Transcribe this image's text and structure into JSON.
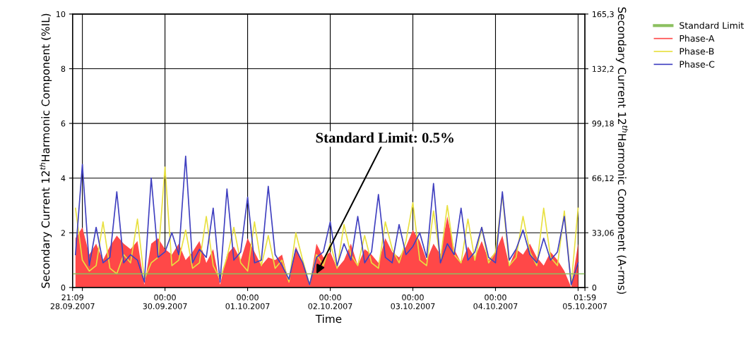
{
  "chart_data": {
    "type": "line",
    "xlabel": "Time",
    "ylabel": "Secondary Current 12$^{th}$Harmonic Component (%IL)",
    "y2label": "Secondary Current 12$^{th}$Harmonic Component (A-rms)",
    "x": [
      "2007-09-28T22:00",
      "2007-09-29T00:00",
      "2007-09-29T02:00",
      "2007-09-29T04:00",
      "2007-09-29T06:00",
      "2007-09-29T08:00",
      "2007-09-29T10:00",
      "2007-09-29T12:00",
      "2007-09-29T14:00",
      "2007-09-29T16:00",
      "2007-09-29T18:00",
      "2007-09-29T20:00",
      "2007-09-29T22:00",
      "2007-09-30T00:00",
      "2007-09-30T02:00",
      "2007-09-30T04:00",
      "2007-09-30T06:00",
      "2007-09-30T08:00",
      "2007-09-30T10:00",
      "2007-09-30T12:00",
      "2007-09-30T14:00",
      "2007-09-30T16:00",
      "2007-09-30T18:00",
      "2007-09-30T20:00",
      "2007-09-30T22:00",
      "2007-10-01T00:00",
      "2007-10-01T02:00",
      "2007-10-01T04:00",
      "2007-10-01T06:00",
      "2007-10-01T08:00",
      "2007-10-01T10:00",
      "2007-10-01T12:00",
      "2007-10-01T14:00",
      "2007-10-01T16:00",
      "2007-10-01T18:00",
      "2007-10-01T20:00",
      "2007-10-01T22:00",
      "2007-10-02T00:00",
      "2007-10-02T02:00",
      "2007-10-02T04:00",
      "2007-10-02T06:00",
      "2007-10-02T08:00",
      "2007-10-02T10:00",
      "2007-10-02T12:00",
      "2007-10-02T14:00",
      "2007-10-02T16:00",
      "2007-10-02T18:00",
      "2007-10-02T20:00",
      "2007-10-02T22:00",
      "2007-10-03T00:00",
      "2007-10-03T02:00",
      "2007-10-03T04:00",
      "2007-10-03T06:00",
      "2007-10-03T08:00",
      "2007-10-03T10:00",
      "2007-10-03T12:00",
      "2007-10-03T14:00",
      "2007-10-03T16:00",
      "2007-10-03T18:00",
      "2007-10-03T20:00",
      "2007-10-03T22:00",
      "2007-10-04T00:00",
      "2007-10-04T02:00",
      "2007-10-04T04:00",
      "2007-10-04T06:00",
      "2007-10-04T08:00",
      "2007-10-04T10:00",
      "2007-10-04T12:00",
      "2007-10-04T14:00",
      "2007-10-04T16:00",
      "2007-10-04T18:00",
      "2007-10-04T20:00",
      "2007-10-04T22:00",
      "2007-10-05T00:00"
    ],
    "series": [
      {
        "name": "Standard Limit",
        "color": "#8cc060",
        "x": [
          "2007-09-28T21:09",
          "2007-10-05T01:59"
        ],
        "values": [
          0.5,
          0.5
        ]
      },
      {
        "name": "Phase-A",
        "type": "area",
        "color": "#ff4848",
        "values": [
          1.8,
          2.2,
          1.2,
          1.6,
          1.0,
          1.5,
          1.9,
          1.6,
          1.4,
          1.7,
          0.1,
          1.6,
          1.8,
          1.4,
          1.2,
          1.6,
          1.0,
          1.3,
          1.7,
          0.9,
          1.4,
          0.1,
          1.2,
          1.5,
          1.0,
          1.8,
          1.3,
          0.8,
          1.1,
          1.0,
          1.2,
          0.2,
          1.5,
          0.9,
          0.1,
          1.6,
          1.1,
          1.3,
          0.7,
          1.0,
          1.6,
          0.8,
          1.4,
          1.2,
          0.9,
          1.8,
          1.3,
          1.1,
          1.5,
          2.1,
          1.7,
          1.0,
          1.6,
          1.2,
          2.6,
          1.4,
          0.9,
          1.5,
          1.1,
          1.7,
          1.0,
          1.3,
          1.9,
          0.8,
          1.4,
          1.2,
          1.6,
          1.1,
          0.8,
          1.3,
          1.0,
          0.6,
          0.0,
          1.6
        ]
      },
      {
        "name": "Phase-B",
        "color": "#e8e040",
        "values": [
          2.9,
          1.0,
          0.6,
          0.8,
          2.4,
          0.7,
          0.5,
          1.2,
          0.9,
          2.5,
          0.3,
          0.9,
          1.1,
          4.4,
          0.8,
          1.0,
          2.1,
          0.7,
          0.9,
          2.6,
          0.8,
          0.3,
          1.1,
          2.2,
          0.9,
          0.6,
          2.4,
          0.8,
          1.9,
          0.7,
          1.0,
          0.2,
          2.0,
          1.0,
          0.1,
          1.2,
          0.8,
          1.6,
          0.7,
          2.3,
          1.2,
          0.8,
          1.9,
          0.9,
          0.7,
          2.4,
          1.4,
          0.9,
          1.7,
          3.1,
          1.0,
          0.8,
          2.8,
          1.0,
          3.0,
          1.2,
          0.9,
          2.5,
          1.0,
          2.2,
          0.9,
          1.3,
          3.4,
          0.8,
          1.1,
          2.6,
          1.3,
          0.8,
          2.9,
          1.1,
          0.8,
          2.8,
          0.1,
          2.9
        ]
      },
      {
        "name": "Phase-C",
        "color": "#4040c0",
        "values": [
          1.2,
          4.5,
          0.8,
          2.2,
          0.9,
          1.1,
          3.5,
          0.9,
          1.2,
          1.0,
          0.2,
          4.0,
          1.1,
          1.3,
          2.0,
          1.2,
          4.8,
          0.9,
          1.4,
          1.1,
          2.9,
          0.2,
          3.6,
          1.0,
          1.3,
          3.3,
          0.9,
          1.0,
          3.7,
          1.2,
          0.8,
          0.3,
          1.4,
          0.9,
          0.1,
          1.1,
          1.3,
          2.4,
          0.8,
          1.6,
          1.0,
          2.6,
          0.9,
          1.3,
          3.4,
          1.1,
          0.9,
          2.3,
          1.2,
          1.5,
          2.0,
          1.1,
          3.8,
          0.9,
          1.6,
          1.2,
          2.9,
          1.0,
          1.3,
          2.2,
          1.1,
          0.9,
          3.5,
          1.0,
          1.4,
          2.1,
          1.2,
          0.9,
          1.8,
          1.0,
          1.3,
          2.6,
          0.1,
          0.9
        ]
      }
    ],
    "xlim": [
      "2007-09-28T21:09",
      "2007-10-05T01:59"
    ],
    "xticks": [
      {
        "value": "2007-09-28T21:09",
        "label": "21:09\n28.09.2007"
      },
      {
        "value": "2007-09-29T00:00",
        "label": null
      },
      {
        "value": "2007-09-30T00:00",
        "label": "00:00\n30.09.2007"
      },
      {
        "value": "2007-10-01T00:00",
        "label": "00:00\n01.10.2007"
      },
      {
        "value": "2007-10-02T00:00",
        "label": "00:00\n02.10.2007"
      },
      {
        "value": "2007-10-03T00:00",
        "label": "00:00\n03.10.2007"
      },
      {
        "value": "2007-10-04T00:00",
        "label": "00:00\n04.10.2007"
      },
      {
        "value": "2007-10-05T00:00",
        "label": null
      },
      {
        "value": "2007-10-05T01:59",
        "label": "01:59\n05.10.2007"
      }
    ],
    "ylim": [
      0,
      10
    ],
    "yticks": [
      0,
      2,
      4,
      6,
      8,
      10
    ],
    "y2lim": [
      0,
      165.3
    ],
    "y2ticks": [
      0,
      {
        "value": 33.06,
        "label": "33,06"
      },
      {
        "value": 66.12,
        "label": "66,12"
      },
      {
        "value": 99.18,
        "label": "99,18"
      },
      {
        "value": 132.2,
        "label": "132,2"
      },
      {
        "value": 165.3,
        "label": "165,3"
      }
    ],
    "annotations": [
      {
        "text": "Standard Limit: 0.5%",
        "x": "2007-10-01T20:00",
        "y": 0.5
      }
    ],
    "grid": true,
    "legend": "top right",
    "marker": "none",
    "line_style": "solid"
  }
}
